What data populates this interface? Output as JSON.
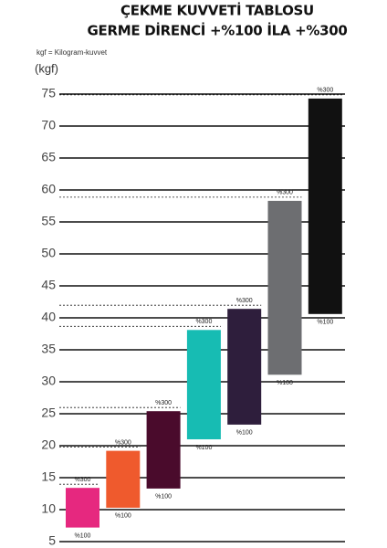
{
  "chart_data": {
    "type": "range-bar",
    "title": "ÇEKME KUVVETİ TABLOSU",
    "subtitle": "GERME DİRENCİ +%100 İLA +%300",
    "note": "kgf = Kilogram-kuvvet",
    "y_label": "(kgf)",
    "low": [
      7.2,
      10.3,
      13.3,
      21,
      23.3,
      31.1,
      40.6
    ],
    "high": [
      13.4,
      19.2,
      25.4,
      38.1,
      41.4,
      58.3,
      74.3
    ],
    "colors": [
      "#e6287f",
      "#ef5a2d",
      "#4a0b2c",
      "#17bcb3",
      "#2e1e3c",
      "#6d6e71",
      "#111111"
    ],
    "high_labels": [
      "%300",
      "%300",
      "%300",
      "%300",
      "%300",
      "%300",
      "%300"
    ],
    "low_labels": [
      "%100",
      "%100",
      "%100",
      "%100",
      "%100",
      "%100",
      "%100"
    ],
    "ylim": [
      5,
      75
    ],
    "yticks": [
      5,
      10,
      15,
      20,
      25,
      30,
      35,
      40,
      45,
      50,
      55,
      60,
      65,
      70,
      75
    ],
    "grid": true
  }
}
